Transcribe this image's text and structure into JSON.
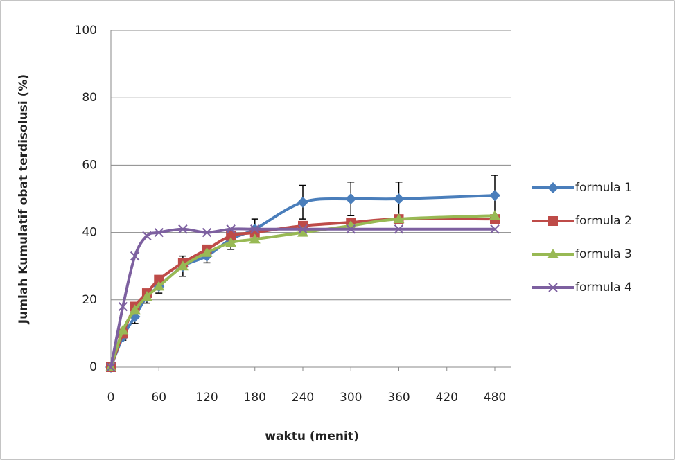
{
  "chart_data": {
    "type": "line",
    "x_label": "waktu (menit)",
    "y_label": "Jumlah Kumulatif obat terdisolusi (%)",
    "x": [
      0,
      15,
      30,
      45,
      60,
      90,
      120,
      150,
      180,
      240,
      300,
      360,
      480
    ],
    "series": [
      {
        "name": "formula 1",
        "color": "#4a7ebb",
        "marker": "diamond",
        "values": [
          0,
          9,
          15,
          21,
          24,
          30,
          33,
          38,
          41,
          49,
          50,
          50,
          51
        ],
        "errors": [
          0,
          1,
          2,
          2,
          2,
          3,
          2,
          3,
          3,
          5,
          5,
          5,
          6
        ]
      },
      {
        "name": "formula 2",
        "color": "#be4b48",
        "marker": "square",
        "values": [
          0,
          10,
          18,
          22,
          26,
          31,
          35,
          39,
          40,
          42,
          43,
          44,
          44
        ]
      },
      {
        "name": "formula 3",
        "color": "#98b954",
        "marker": "triangle",
        "values": [
          0,
          11,
          17,
          21,
          24,
          30,
          34,
          37,
          38,
          40,
          42,
          44,
          45
        ]
      },
      {
        "name": "formula 4",
        "color": "#7d60a0",
        "marker": "cross",
        "values": [
          0,
          18,
          33,
          39,
          40,
          41,
          40,
          41,
          41,
          41,
          41,
          41,
          41
        ]
      }
    ],
    "xlim": [
      0,
      480
    ],
    "xticks": [
      0,
      60,
      120,
      180,
      240,
      300,
      360,
      420,
      480
    ],
    "ylim": [
      0,
      100
    ],
    "yticks": [
      0,
      20,
      40,
      60,
      80,
      100
    ],
    "grid": true,
    "legend": "right"
  }
}
